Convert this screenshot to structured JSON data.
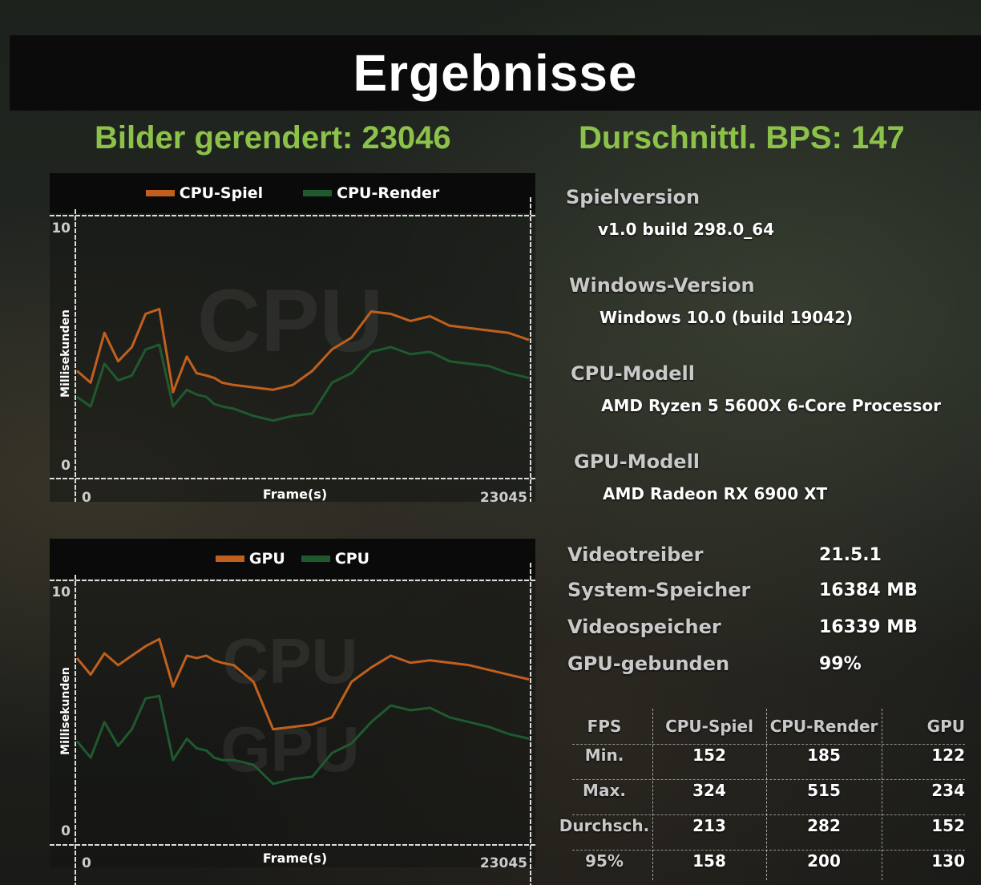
{
  "title": "Ergebnisse",
  "frames_rendered": "Bilder gerendert: 23046",
  "avg_fps": "Durschnittl. BPS: 147",
  "colors": {
    "accent_green": "#8cc24a",
    "series_orange": "#c1601e",
    "series_green": "#1f5a2f"
  },
  "chart1": {
    "legend": [
      "CPU-Spiel",
      "CPU-Render"
    ],
    "watermark": "CPU",
    "xlabel": "Frame(s)",
    "ylabel": "Millisekunden",
    "y_max_label": "10",
    "y_min_label": "0",
    "x_min_label": "0",
    "x_max_label": "23045"
  },
  "chart2": {
    "legend": [
      "GPU",
      "CPU"
    ],
    "watermark_top": "CPU",
    "watermark_bottom": "GPU",
    "xlabel": "Frame(s)",
    "ylabel": "Millisekunden",
    "y_max_label": "10",
    "y_min_label": "0",
    "x_min_label": "0",
    "x_max_label": "23045"
  },
  "chart_data": [
    {
      "type": "line",
      "xlabel": "Frame(s)",
      "ylabel": "Millisekunden",
      "xlim": [
        0,
        23045
      ],
      "ylim": [
        0,
        10
      ],
      "grid": false,
      "legend": "top",
      "x": [
        0,
        700,
        1400,
        2100,
        2800,
        3500,
        4200,
        4900,
        5600,
        6100,
        6600,
        7000,
        7400,
        8000,
        9000,
        10000,
        11000,
        12000,
        13000,
        14000,
        15000,
        16000,
        17000,
        18000,
        19000,
        20000,
        21000,
        22000,
        23045
      ],
      "series": [
        {
          "name": "CPU-Spiel",
          "values": [
            3.9,
            3.4,
            5.5,
            4.3,
            4.9,
            6.3,
            6.5,
            3.0,
            4.5,
            3.8,
            3.7,
            3.6,
            3.4,
            3.3,
            3.2,
            3.1,
            3.3,
            3.9,
            4.8,
            5.3,
            6.4,
            6.3,
            6.0,
            6.2,
            5.8,
            5.7,
            5.6,
            5.5,
            5.2
          ]
        },
        {
          "name": "CPU-Render",
          "values": [
            2.8,
            2.4,
            4.2,
            3.5,
            3.7,
            4.8,
            5.0,
            2.4,
            3.1,
            2.9,
            2.8,
            2.5,
            2.4,
            2.3,
            2.0,
            1.8,
            2.0,
            2.1,
            3.4,
            3.8,
            4.7,
            4.9,
            4.6,
            4.7,
            4.3,
            4.2,
            4.1,
            3.8,
            3.6
          ]
        }
      ]
    },
    {
      "type": "line",
      "xlabel": "Frame(s)",
      "ylabel": "Millisekunden",
      "xlim": [
        0,
        23045
      ],
      "ylim": [
        0,
        10
      ],
      "grid": false,
      "legend": "top",
      "x": [
        0,
        700,
        1400,
        2100,
        2800,
        3500,
        4200,
        4900,
        5600,
        6100,
        6600,
        7000,
        7400,
        8000,
        9000,
        10000,
        11000,
        12000,
        13000,
        14000,
        15000,
        16000,
        17000,
        18000,
        19000,
        20000,
        21000,
        22000,
        23045
      ],
      "series": [
        {
          "name": "GPU",
          "values": [
            7.2,
            6.5,
            7.4,
            6.9,
            7.3,
            7.7,
            8.0,
            6.0,
            7.3,
            7.2,
            7.3,
            7.1,
            7.0,
            6.9,
            6.2,
            4.2,
            4.3,
            4.4,
            4.7,
            6.2,
            6.8,
            7.3,
            7.0,
            7.1,
            7.0,
            6.9,
            6.7,
            6.5,
            6.3
          ]
        },
        {
          "name": "CPU",
          "values": [
            3.7,
            3.0,
            4.5,
            3.5,
            4.2,
            5.5,
            5.6,
            2.9,
            3.8,
            3.4,
            3.3,
            3.0,
            2.9,
            2.9,
            2.7,
            1.9,
            2.1,
            2.2,
            3.2,
            3.6,
            4.5,
            5.2,
            5.0,
            5.1,
            4.7,
            4.5,
            4.3,
            4.0,
            3.8
          ]
        }
      ]
    }
  ],
  "info": {
    "game_version_label": "Spielversion",
    "game_version": "v1.0 build 298.0_64",
    "windows_label": "Windows-Version",
    "windows": "Windows 10.0 (build 19042)",
    "cpu_label": "CPU-Modell",
    "cpu": "AMD Ryzen 5 5600X 6-Core Processor",
    "gpu_label": "GPU-Modell",
    "gpu": "AMD Radeon RX 6900 XT"
  },
  "specs": [
    {
      "label": "Videotreiber",
      "value": "21.5.1"
    },
    {
      "label": "System-Speicher",
      "value": "16384 MB"
    },
    {
      "label": "Videospeicher",
      "value": "16339 MB"
    },
    {
      "label": "GPU-gebunden",
      "value": "99%"
    }
  ],
  "fps_table": {
    "headers": [
      "FPS",
      "CPU-Spiel",
      "CPU-Render",
      "GPU"
    ],
    "rows": [
      [
        "Min.",
        "152",
        "185",
        "122"
      ],
      [
        "Max.",
        "324",
        "515",
        "234"
      ],
      [
        "Durchsch.",
        "213",
        "282",
        "152"
      ],
      [
        "95%",
        "158",
        "200",
        "130"
      ]
    ]
  }
}
